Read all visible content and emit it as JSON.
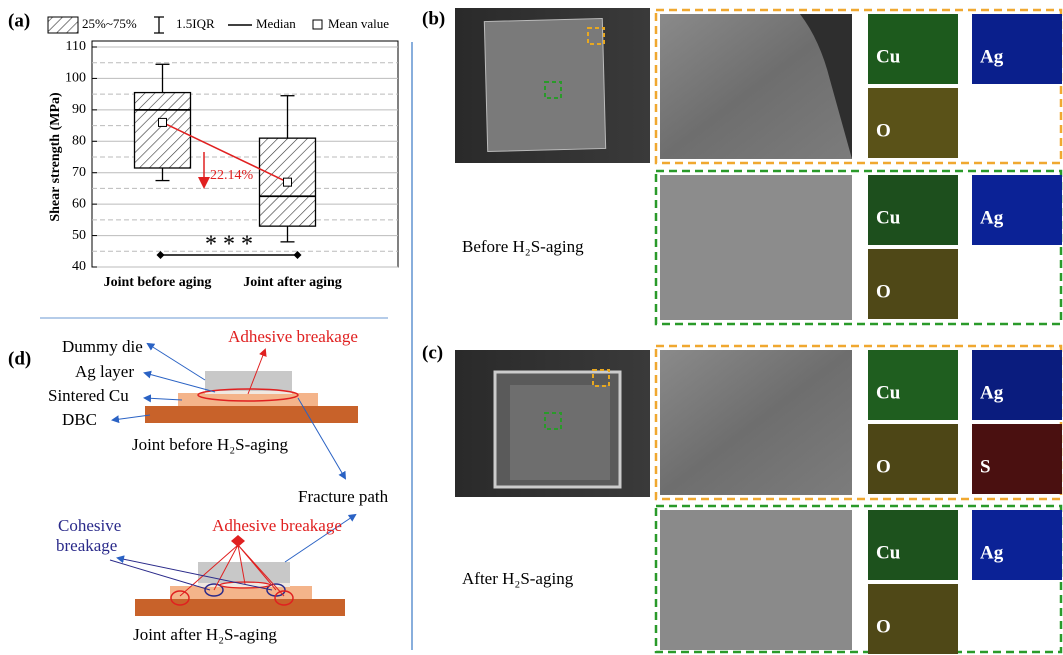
{
  "panel_labels": [
    "(a)",
    "(b)",
    "(c)",
    "(d)"
  ],
  "chart_data": {
    "type": "box",
    "y_label": "Shear strength (MPa)",
    "categories": [
      "Joint before aging",
      "Joint after aging"
    ],
    "boxes": [
      {
        "whisker_low": 67.5,
        "q1": 71.5,
        "median": 90,
        "q3": 95.5,
        "whisker_high": 104.5,
        "mean": 86
      },
      {
        "whisker_low": 48,
        "q1": 53,
        "median": 62.5,
        "q3": 81,
        "whisker_high": 94.5,
        "mean": 67
      }
    ],
    "ylim": [
      40,
      110
    ],
    "yticks": [
      40,
      50,
      60,
      70,
      80,
      90,
      100,
      110
    ],
    "minor_yticks": [
      45,
      55,
      65,
      75,
      85,
      95,
      105
    ],
    "grid": true,
    "legend": [
      "25%~75%",
      "1.5IQR",
      "Median",
      "Mean value"
    ],
    "mean_line_color": "#e02020",
    "change_label": "22.14%",
    "significance_label": "* * *"
  },
  "panels": {
    "b": {
      "caption": "Before H₂S-aging",
      "edge_maps": [
        {
          "label": "Cu",
          "color": "#1d5a1d"
        },
        {
          "label": "Ag",
          "color": "#0a1f8c"
        },
        {
          "label": "O",
          "color": "#5a5218"
        }
      ],
      "center_maps": [
        {
          "label": "Cu",
          "color": "#1d4f1d"
        },
        {
          "label": "Ag",
          "color": "#0b2296"
        },
        {
          "label": "O",
          "color": "#4f4817"
        }
      ]
    },
    "c": {
      "caption": "After H₂S-aging",
      "edge_maps": [
        {
          "label": "Cu",
          "color": "#1f5e1f"
        },
        {
          "label": "Ag",
          "color": "#0a1c7e"
        },
        {
          "label": "O",
          "color": "#4d4616"
        },
        {
          "label": "S",
          "color": "#4a1010"
        }
      ],
      "center_maps": [
        {
          "label": "Cu",
          "color": "#1d521d"
        },
        {
          "label": "Ag",
          "color": "#0b2296"
        },
        {
          "label": "O",
          "color": "#4f4817"
        }
      ]
    }
  },
  "diagram": {
    "dummy_die": "Dummy die",
    "ag_layer": "Ag layer",
    "sintered_cu": "Sintered Cu",
    "dbc": "DBC",
    "adhesive_before": "Adhesive breakage",
    "before_caption": "Joint before H₂S-aging",
    "fracture_path": "Fracture path",
    "cohesive": [
      "Cohesive",
      "breakage"
    ],
    "adhesive_after": "Adhesive breakage",
    "after_caption": "Joint after H₂S-aging"
  }
}
